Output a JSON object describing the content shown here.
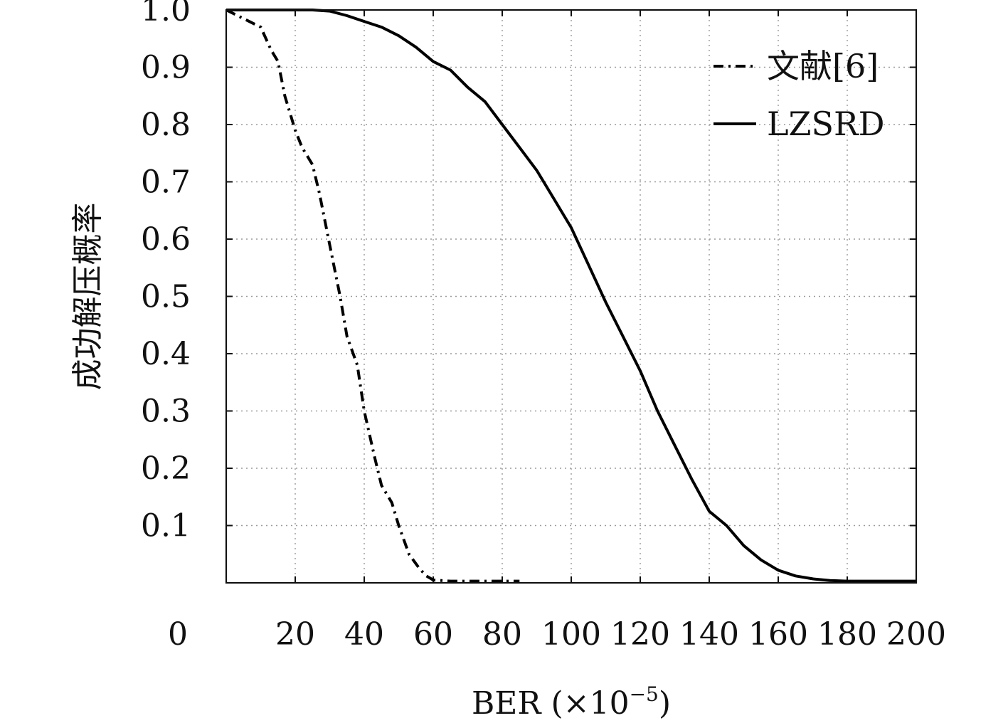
{
  "chart_data": {
    "type": "line",
    "xlabel": "BER (×10",
    "xlabel_exp": "−5",
    "xlabel_close": ")",
    "ylabel": "成功解压概率",
    "xlim": [
      0,
      200
    ],
    "ylim": [
      0,
      1.0
    ],
    "x_ticks": [
      0,
      20,
      40,
      60,
      80,
      100,
      120,
      140,
      160,
      180,
      200
    ],
    "x_tick_labels": [
      "0",
      "20",
      "40",
      "60",
      "80",
      "100",
      "120",
      "140",
      "160",
      "180",
      "200"
    ],
    "y_ticks": [
      0.1,
      0.2,
      0.3,
      0.4,
      0.5,
      0.6,
      0.7,
      0.8,
      0.9,
      1.0
    ],
    "y_tick_labels": [
      "0.1",
      "0.2",
      "0.3",
      "0.4",
      "0.5",
      "0.6",
      "0.7",
      "0.8",
      "0.9",
      "1.0"
    ],
    "grid": true,
    "legend_position": "top-right",
    "series": [
      {
        "name": "文献[6]",
        "style": "dash-dot",
        "color": "#000000",
        "x": [
          0,
          5,
          10,
          13,
          15,
          17,
          20,
          22,
          25,
          27,
          30,
          33,
          35,
          38,
          40,
          43,
          45,
          48,
          50,
          53,
          56,
          58,
          60,
          65,
          70,
          75,
          80,
          85
        ],
        "y": [
          1.0,
          0.985,
          0.97,
          0.93,
          0.91,
          0.85,
          0.79,
          0.76,
          0.73,
          0.68,
          0.59,
          0.5,
          0.43,
          0.38,
          0.3,
          0.22,
          0.17,
          0.14,
          0.1,
          0.05,
          0.025,
          0.012,
          0.005,
          0.003,
          0.003,
          0.003,
          0.003,
          0.003
        ]
      },
      {
        "name": "LZSRD",
        "style": "solid",
        "color": "#000000",
        "x": [
          0,
          10,
          20,
          25,
          30,
          35,
          40,
          45,
          50,
          55,
          60,
          65,
          70,
          75,
          80,
          85,
          90,
          95,
          100,
          105,
          110,
          115,
          120,
          125,
          130,
          135,
          140,
          145,
          150,
          155,
          160,
          165,
          170,
          175,
          180,
          185,
          190,
          200
        ],
        "y": [
          1.0,
          1.0,
          1.0,
          1.0,
          0.998,
          0.99,
          0.98,
          0.97,
          0.955,
          0.935,
          0.91,
          0.895,
          0.865,
          0.84,
          0.8,
          0.76,
          0.72,
          0.67,
          0.62,
          0.555,
          0.49,
          0.43,
          0.37,
          0.3,
          0.24,
          0.18,
          0.125,
          0.1,
          0.065,
          0.04,
          0.022,
          0.012,
          0.007,
          0.004,
          0.003,
          0.003,
          0.003,
          0.003
        ]
      }
    ]
  }
}
